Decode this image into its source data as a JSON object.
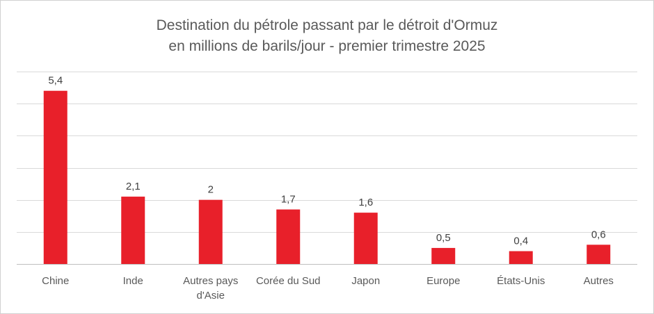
{
  "chart_data": {
    "type": "bar",
    "title_lines": [
      "Destination du pétrole passant par le détroit d'Ormuz",
      "en millions de barils/jour - premier trimestre 2025"
    ],
    "categories": [
      "Chine",
      "Inde",
      "Autres pays d'Asie",
      "Corée du Sud",
      "Japon",
      "Europe",
      "États-Unis",
      "Autres"
    ],
    "category_label_lines": [
      [
        "Chine"
      ],
      [
        "Inde"
      ],
      [
        "Autres pays",
        "d'Asie"
      ],
      [
        "Corée du Sud"
      ],
      [
        "Japon"
      ],
      [
        "Europe"
      ],
      [
        "États-Unis"
      ],
      [
        "Autres"
      ]
    ],
    "values": [
      5.4,
      2.1,
      2,
      1.7,
      1.6,
      0.5,
      0.4,
      0.6
    ],
    "data_labels": [
      "5,4",
      "2,1",
      "2",
      "1,7",
      "1,6",
      "0,5",
      "0,4",
      "0,6"
    ],
    "ylim": [
      0,
      6
    ],
    "grid": true,
    "legend": "none",
    "bar_color": "#e8202a"
  }
}
